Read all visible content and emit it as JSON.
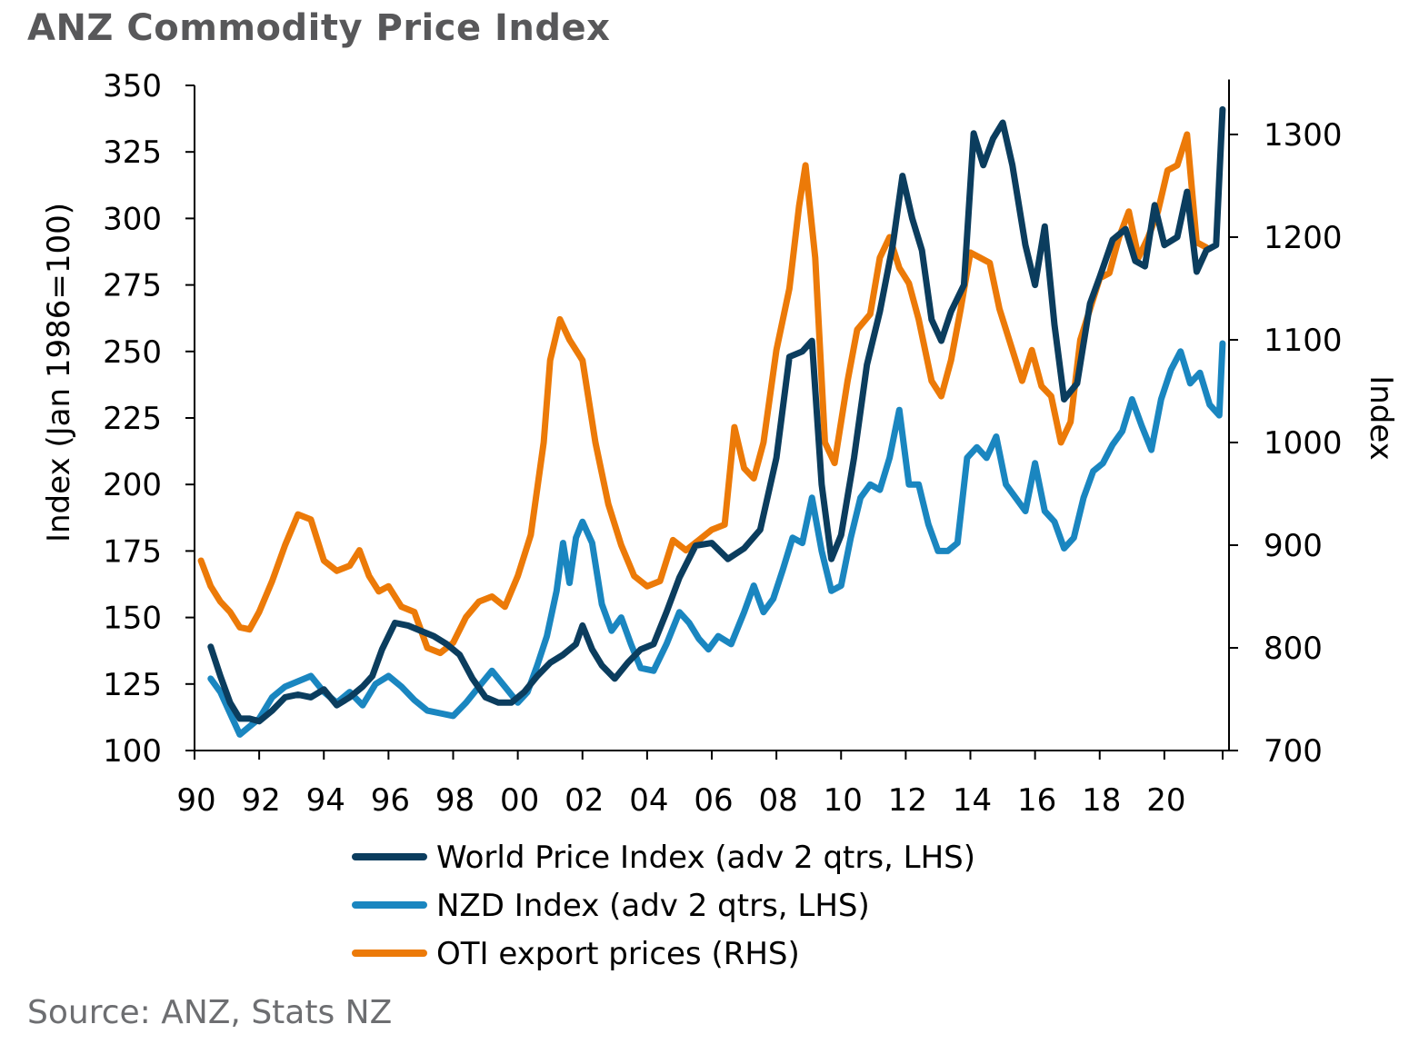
{
  "title": "ANZ Commodity Price Index",
  "source": "Source: ANZ, Stats NZ",
  "chart_data": {
    "type": "line",
    "title": "ANZ Commodity Price Index",
    "xlabel": "",
    "ylabel": "Index (Jan 1986=100)",
    "y2label": "Index",
    "xlim": [
      1990,
      2022
    ],
    "ylim": [
      100,
      350
    ],
    "y2lim": [
      700,
      1350
    ],
    "x_ticks": [
      1990,
      1992,
      1994,
      1996,
      1998,
      2000,
      2002,
      2004,
      2006,
      2008,
      2010,
      2012,
      2014,
      2016,
      2018,
      2020
    ],
    "x_tick_labels": [
      "90",
      "92",
      "94",
      "96",
      "98",
      "00",
      "02",
      "04",
      "06",
      "08",
      "10",
      "12",
      "14",
      "16",
      "18",
      "20"
    ],
    "y_ticks": [
      100,
      125,
      150,
      175,
      200,
      225,
      250,
      275,
      300,
      325,
      350
    ],
    "y2_ticks": [
      700,
      800,
      900,
      1000,
      1100,
      1200,
      1300
    ],
    "grid": false,
    "legend_position": "bottom",
    "series": [
      {
        "name": "World Price Index (adv 2 qtrs, LHS)",
        "axis": "left",
        "color": "#0b3d5e",
        "x": [
          1990.5,
          1990.8,
          1991.1,
          1991.4,
          1991.7,
          1992.0,
          1992.4,
          1992.8,
          1993.2,
          1993.6,
          1994.0,
          1994.4,
          1994.8,
          1995.2,
          1995.5,
          1995.8,
          1996.2,
          1996.6,
          1997.0,
          1997.4,
          1997.8,
          1998.2,
          1998.6,
          1999.0,
          1999.4,
          1999.8,
          2000.2,
          2000.6,
          2001.0,
          2001.4,
          2001.8,
          2002.0,
          2002.3,
          2002.6,
          2003.0,
          2003.4,
          2003.8,
          2004.2,
          2004.6,
          2005.0,
          2005.5,
          2006.0,
          2006.5,
          2007.0,
          2007.5,
          2008.0,
          2008.4,
          2008.8,
          2009.1,
          2009.4,
          2009.7,
          2010.0,
          2010.4,
          2010.8,
          2011.2,
          2011.6,
          2011.9,
          2012.2,
          2012.5,
          2012.8,
          2013.1,
          2013.4,
          2013.8,
          2014.1,
          2014.4,
          2014.7,
          2015.0,
          2015.3,
          2015.7,
          2016.0,
          2016.3,
          2016.6,
          2016.9,
          2017.3,
          2017.7,
          2018.0,
          2018.4,
          2018.8,
          2019.1,
          2019.4,
          2019.7,
          2020.0,
          2020.4,
          2020.7,
          2021.0,
          2021.3,
          2021.6,
          2021.8
        ],
        "y": [
          139,
          128,
          118,
          112,
          112,
          111,
          115,
          120,
          121,
          120,
          123,
          117,
          120,
          124,
          128,
          138,
          148,
          147,
          145,
          143,
          140,
          136,
          127,
          120,
          118,
          118,
          122,
          128,
          133,
          136,
          140,
          147,
          138,
          132,
          127,
          133,
          138,
          140,
          152,
          165,
          177,
          178,
          172,
          176,
          183,
          210,
          248,
          250,
          254,
          200,
          172,
          181,
          210,
          245,
          265,
          290,
          316,
          300,
          288,
          262,
          254,
          265,
          275,
          332,
          320,
          330,
          336,
          320,
          290,
          275,
          297,
          260,
          232,
          238,
          268,
          278,
          292,
          296,
          284,
          282,
          305,
          290,
          293,
          310,
          280,
          288,
          290,
          341
        ]
      },
      {
        "name": "NZD Index (adv 2 qtrs, LHS)",
        "axis": "left",
        "color": "#1a86c0",
        "x": [
          1990.5,
          1990.8,
          1991.1,
          1991.4,
          1991.7,
          1992.0,
          1992.4,
          1992.8,
          1993.2,
          1993.6,
          1994.0,
          1994.4,
          1994.8,
          1995.2,
          1995.6,
          1996.0,
          1996.4,
          1996.8,
          1997.2,
          1997.6,
          1998.0,
          1998.4,
          1998.8,
          1999.2,
          1999.6,
          2000.0,
          2000.3,
          2000.6,
          2000.9,
          2001.2,
          2001.4,
          2001.6,
          2001.8,
          2002.0,
          2002.3,
          2002.6,
          2002.9,
          2003.2,
          2003.5,
          2003.8,
          2004.2,
          2004.6,
          2005.0,
          2005.3,
          2005.6,
          2005.9,
          2006.2,
          2006.6,
          2007.0,
          2007.3,
          2007.6,
          2007.9,
          2008.2,
          2008.5,
          2008.8,
          2009.1,
          2009.4,
          2009.7,
          2010.0,
          2010.3,
          2010.6,
          2010.9,
          2011.2,
          2011.5,
          2011.8,
          2012.1,
          2012.4,
          2012.7,
          2013.0,
          2013.3,
          2013.6,
          2013.9,
          2014.2,
          2014.5,
          2014.8,
          2015.1,
          2015.4,
          2015.7,
          2016.0,
          2016.3,
          2016.6,
          2016.9,
          2017.2,
          2017.5,
          2017.8,
          2018.1,
          2018.4,
          2018.7,
          2019.0,
          2019.3,
          2019.6,
          2019.9,
          2020.2,
          2020.5,
          2020.8,
          2021.1,
          2021.4,
          2021.7,
          2021.8
        ],
        "y": [
          127,
          122,
          114,
          106,
          109,
          112,
          120,
          124,
          126,
          128,
          122,
          118,
          122,
          117,
          125,
          128,
          124,
          119,
          115,
          114,
          113,
          118,
          124,
          130,
          124,
          118,
          122,
          132,
          143,
          160,
          178,
          163,
          180,
          186,
          178,
          155,
          145,
          150,
          140,
          131,
          130,
          140,
          152,
          148,
          142,
          138,
          143,
          140,
          152,
          162,
          152,
          157,
          168,
          180,
          178,
          195,
          175,
          160,
          162,
          180,
          195,
          200,
          198,
          210,
          228,
          200,
          200,
          185,
          175,
          175,
          178,
          210,
          214,
          210,
          218,
          200,
          195,
          190,
          208,
          190,
          186,
          176,
          180,
          195,
          205,
          208,
          215,
          220,
          232,
          222,
          213,
          232,
          243,
          250,
          238,
          242,
          230,
          226,
          253
        ]
      },
      {
        "name": "OTI export prices (RHS)",
        "axis": "right",
        "color": "#ec7a08",
        "x": [
          1990.2,
          1990.5,
          1990.8,
          1991.1,
          1991.4,
          1991.7,
          1992.0,
          1992.4,
          1992.8,
          1993.2,
          1993.6,
          1994.0,
          1994.4,
          1994.8,
          1995.1,
          1995.4,
          1995.7,
          1996.0,
          1996.4,
          1996.8,
          1997.2,
          1997.6,
          1998.0,
          1998.4,
          1998.8,
          1999.2,
          1999.6,
          2000.0,
          2000.4,
          2000.8,
          2001.0,
          2001.3,
          2001.6,
          2002.0,
          2002.4,
          2002.8,
          2003.2,
          2003.6,
          2004.0,
          2004.4,
          2004.8,
          2005.2,
          2005.6,
          2006.0,
          2006.4,
          2006.7,
          2007.0,
          2007.3,
          2007.6,
          2008.0,
          2008.4,
          2008.7,
          2008.9,
          2009.2,
          2009.5,
          2009.8,
          2010.2,
          2010.5,
          2010.9,
          2011.2,
          2011.5,
          2011.8,
          2012.1,
          2012.4,
          2012.8,
          2013.1,
          2013.4,
          2013.7,
          2014.0,
          2014.3,
          2014.6,
          2014.9,
          2015.2,
          2015.6,
          2015.9,
          2016.2,
          2016.5,
          2016.8,
          2017.1,
          2017.4,
          2017.7,
          2018.0,
          2018.3,
          2018.6,
          2018.9,
          2019.2,
          2019.5,
          2019.8,
          2020.1,
          2020.4,
          2020.7,
          2021.0,
          2021.3
        ],
        "y": [
          885,
          860,
          845,
          835,
          820,
          818,
          835,
          865,
          900,
          930,
          925,
          885,
          875,
          880,
          895,
          870,
          855,
          860,
          840,
          835,
          800,
          795,
          805,
          830,
          845,
          850,
          840,
          870,
          910,
          1000,
          1080,
          1120,
          1100,
          1080,
          1000,
          940,
          900,
          870,
          860,
          865,
          905,
          895,
          905,
          915,
          920,
          1015,
          975,
          965,
          1000,
          1090,
          1150,
          1230,
          1270,
          1180,
          1000,
          980,
          1060,
          1110,
          1125,
          1180,
          1200,
          1170,
          1155,
          1120,
          1060,
          1045,
          1080,
          1130,
          1185,
          1180,
          1175,
          1130,
          1100,
          1060,
          1090,
          1055,
          1045,
          1000,
          1020,
          1100,
          1130,
          1160,
          1165,
          1200,
          1225,
          1180,
          1200,
          1225,
          1265,
          1270,
          1300,
          1195,
          1190
        ]
      }
    ]
  }
}
